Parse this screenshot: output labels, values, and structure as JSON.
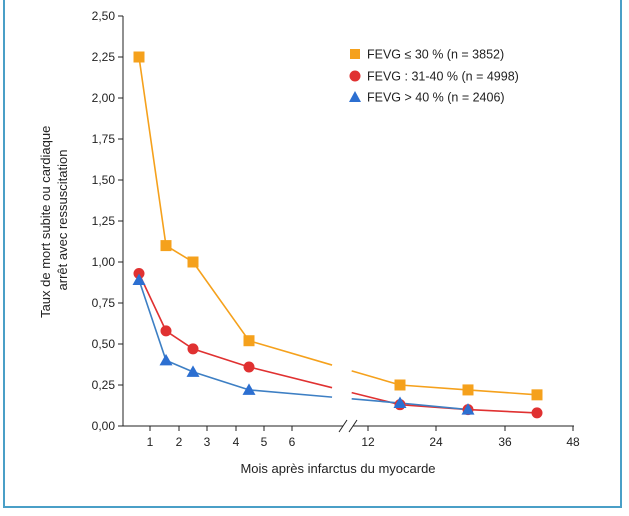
{
  "chart_data": {
    "type": "line",
    "title": "",
    "xlabel": "Mois après infarctus du myocarde",
    "ylabel_lines": [
      "Taux de mort subite ou cardiaque",
      "arrêt avec ressuscitation"
    ],
    "ylim": [
      0,
      2.5
    ],
    "y_ticks": [
      "0,00",
      "0,25",
      "0,50",
      "0,75",
      "1,00",
      "1,25",
      "1,50",
      "1,75",
      "2,00",
      "2,25",
      "2,50"
    ],
    "x_axis_break": true,
    "x_ticks_left": [
      "1",
      "2",
      "3",
      "4",
      "5",
      "6"
    ],
    "x_ticks_right": [
      "12",
      "24",
      "36",
      "48"
    ],
    "grid": false,
    "legend_position": "top-right",
    "series": [
      {
        "name": "FEVG ≤ 30 % (n = 3852)",
        "marker": "square",
        "color": "#f5a11c",
        "line_color": "#f5a11c",
        "x": [
          0.5,
          1.5,
          2.5,
          4.5,
          18,
          30,
          42
        ],
        "y": [
          2.25,
          1.1,
          1.0,
          0.52,
          0.25,
          0.22,
          0.19
        ]
      },
      {
        "name": "FEVG : 31-40 % (n = 4998)",
        "marker": "circle",
        "color": "#e03131",
        "line_color": "#e03131",
        "x": [
          0.5,
          1.5,
          2.5,
          4.5,
          18,
          30,
          42
        ],
        "y": [
          0.93,
          0.58,
          0.47,
          0.36,
          0.13,
          0.1,
          0.08
        ]
      },
      {
        "name": "FEVG > 40 % (n = 2406)",
        "marker": "triangle",
        "color": "#2c6fd1",
        "line_color": "#3d7fc4",
        "x": [
          0.5,
          1.5,
          2.5,
          4.5,
          18,
          30
        ],
        "y": [
          0.89,
          0.4,
          0.33,
          0.22,
          0.14,
          0.1
        ]
      }
    ]
  }
}
